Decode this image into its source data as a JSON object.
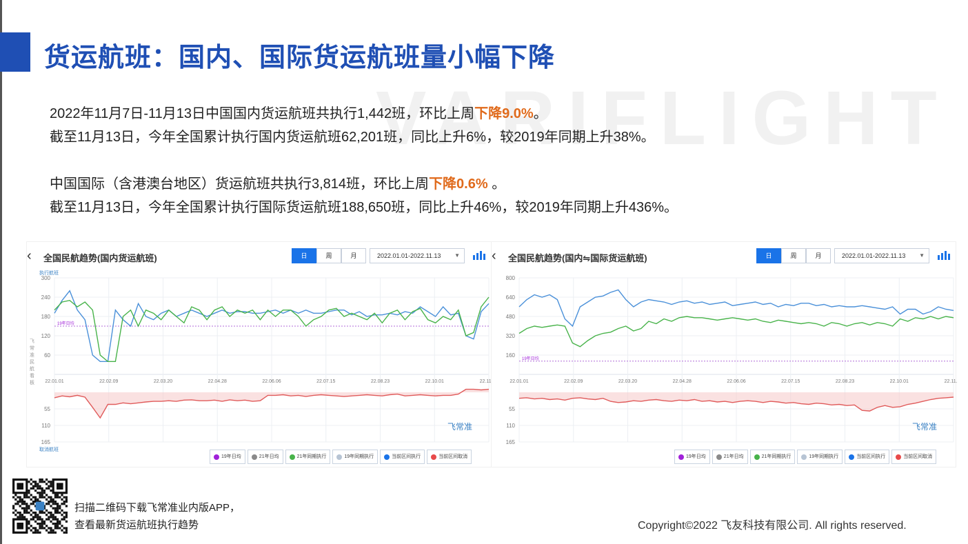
{
  "page": {
    "title": "货运航班：国内、国际货运航班量小幅下降",
    "watermark": "VARIFLIGHT"
  },
  "summary": {
    "line1_prefix": "2022年11月7日-11月13日中国国内货运航班共执行1,442班，环比上周",
    "line1_highlight": "下降9.0%",
    "line1_suffix": "。",
    "line2": "截至11月13日，今年全国累计执行国内货运航班62,201班，同比上升6%，较2019年同期上升38%。",
    "line3_prefix": "中国国际（含港澳台地区）货运航班共执行3,814班，环比上周",
    "line3_highlight": "下降0.6%",
    "line3_suffix": " 。",
    "line4": "截至11月13日，今年全国累计执行国际货运航班188,650班，同比上升46%，较2019年同期上升436%。",
    "highlight_color": "#e06a1b"
  },
  "chart_data": [
    {
      "type": "line",
      "title": "全国民航趋势(国内货运航班)",
      "segments": [
        "日",
        "周",
        "月"
      ],
      "active_segment": "日",
      "date_range": "2022.01.01-2022.11.13",
      "ylabel_top": "执行航班",
      "ylabel_bottom": "取消航班",
      "ylabel_side": "飞常准民航看板",
      "upper_yticks": [
        "300",
        "240",
        "180",
        "120",
        "60"
      ],
      "upper_ylim": [
        0,
        300
      ],
      "lower_yticks": [
        "55",
        "110",
        "165"
      ],
      "lower_ylim": [
        0,
        165
      ],
      "xticks": [
        "22.01.01",
        "22.02.09",
        "22.03.20",
        "22.04.28",
        "22.06.06",
        "22.07.15",
        "22.08.23",
        "22.10.01",
        "22.11.09"
      ],
      "reference_label": "19年日均",
      "reference_value": 150,
      "logo": "飞常准",
      "series": [
        {
          "name": "当前区间执行",
          "color": "#4a90d9",
          "values": [
            190,
            230,
            260,
            200,
            170,
            60,
            40,
            40,
            200,
            170,
            150,
            220,
            180,
            170,
            190,
            200,
            180,
            190,
            200,
            190,
            180,
            190,
            200,
            190,
            195,
            195,
            190,
            190,
            195,
            200,
            190,
            200,
            190,
            200,
            190,
            190,
            195,
            200,
            200,
            185,
            195,
            180,
            185,
            185,
            190,
            185,
            195,
            190,
            210,
            195,
            180,
            210,
            185,
            190,
            120,
            110,
            195,
            220
          ]
        },
        {
          "name": "21年同期执行",
          "color": "#48b34a",
          "values": [
            200,
            225,
            230,
            210,
            225,
            200,
            60,
            40,
            40,
            180,
            200,
            150,
            200,
            190,
            170,
            200,
            180,
            160,
            210,
            200,
            170,
            200,
            210,
            180,
            200,
            190,
            200,
            170,
            200,
            180,
            200,
            200,
            180,
            150,
            170,
            180,
            200,
            205,
            180,
            190,
            180,
            170,
            190,
            160,
            190,
            200,
            170,
            195,
            205,
            170,
            160,
            180,
            170,
            200,
            120,
            130,
            210,
            240
          ]
        },
        {
          "name": "当前区间取消",
          "color": "#e05a5a",
          "values": [
            18,
            12,
            15,
            10,
            16,
            50,
            85,
            40,
            40,
            35,
            38,
            35,
            32,
            30,
            30,
            28,
            30,
            26,
            25,
            28,
            28,
            26,
            30,
            25,
            28,
            26,
            30,
            28,
            10,
            10,
            8,
            12,
            10,
            14,
            10,
            8,
            10,
            12,
            14,
            12,
            10,
            8,
            10,
            12,
            8,
            6,
            12,
            10,
            8,
            10,
            12,
            10,
            10,
            6,
            -10,
            -10,
            -8,
            -10
          ]
        }
      ],
      "legend": [
        "19年日均",
        "21年日均",
        "21年同期执行",
        "19年同期执行",
        "当前区间执行",
        "当前区间取消"
      ],
      "legend_colors": [
        "#a021d9",
        "#8a8a8a",
        "#48b34a",
        "#b7c4d4",
        "#1a73e8",
        "#e84a4a"
      ]
    },
    {
      "type": "line",
      "title": "全国民航趋势(国内⇋国际货运航班)",
      "segments": [
        "日",
        "周",
        "月"
      ],
      "active_segment": "日",
      "date_range": "2022.01.01-2022.11.13",
      "upper_yticks": [
        "800",
        "640",
        "480",
        "320",
        "160"
      ],
      "upper_ylim": [
        0,
        800
      ],
      "lower_yticks": [
        "55",
        "110",
        "165"
      ],
      "lower_ylim": [
        0,
        165
      ],
      "xticks": [
        "22.01.01",
        "22.02.09",
        "22.03.20",
        "22.04.28",
        "22.06.06",
        "22.07.15",
        "22.08.23",
        "22.10.01",
        "22.11.09"
      ],
      "reference_label": "19年日均",
      "reference_value": 110,
      "logo": "飞常准",
      "series": [
        {
          "name": "当前区间执行",
          "color": "#4a90d9",
          "values": [
            560,
            620,
            660,
            640,
            660,
            620,
            460,
            400,
            560,
            600,
            640,
            650,
            680,
            700,
            620,
            560,
            600,
            620,
            610,
            600,
            580,
            600,
            610,
            590,
            600,
            580,
            590,
            600,
            570,
            580,
            590,
            600,
            580,
            590,
            560,
            580,
            570,
            590,
            590,
            570,
            580,
            560,
            570,
            560,
            560,
            570,
            560,
            550,
            540,
            560,
            500,
            540,
            540,
            500,
            520,
            560,
            540,
            530
          ]
        },
        {
          "name": "21年同期执行",
          "color": "#48b34a",
          "values": [
            340,
            380,
            400,
            390,
            400,
            410,
            400,
            260,
            230,
            280,
            320,
            340,
            350,
            380,
            400,
            360,
            380,
            440,
            420,
            460,
            440,
            470,
            480,
            470,
            470,
            460,
            450,
            460,
            470,
            460,
            450,
            460,
            440,
            430,
            450,
            440,
            430,
            420,
            430,
            420,
            400,
            430,
            420,
            400,
            420,
            430,
            410,
            430,
            420,
            400,
            460,
            440,
            470,
            460,
            480,
            460,
            480,
            470
          ]
        },
        {
          "name": "当前区间取消",
          "color": "#e05a5a",
          "values": [
            20,
            18,
            22,
            20,
            24,
            22,
            26,
            20,
            18,
            22,
            24,
            20,
            30,
            34,
            32,
            28,
            30,
            26,
            24,
            28,
            30,
            26,
            28,
            24,
            30,
            28,
            32,
            30,
            34,
            30,
            28,
            30,
            34,
            30,
            32,
            36,
            34,
            38,
            40,
            36,
            38,
            42,
            40,
            44,
            42,
            60,
            62,
            50,
            44,
            50,
            48,
            40,
            36,
            30,
            24,
            20,
            18,
            16
          ]
        }
      ],
      "legend": [
        "19年日均",
        "21年日均",
        "21年同期执行",
        "19年同期执行",
        "当前区间执行",
        "当前区间取消"
      ],
      "legend_colors": [
        "#a021d9",
        "#8a8a8a",
        "#48b34a",
        "#b7c4d4",
        "#1a73e8",
        "#e84a4a"
      ]
    }
  ],
  "footer": {
    "qr_line1": "扫描二维码下载飞常准业内版APP，",
    "qr_line2": "查看最新货运航班执行趋势",
    "copyright": "Copyright©2022 飞友科技有限公司. All rights reserved."
  }
}
